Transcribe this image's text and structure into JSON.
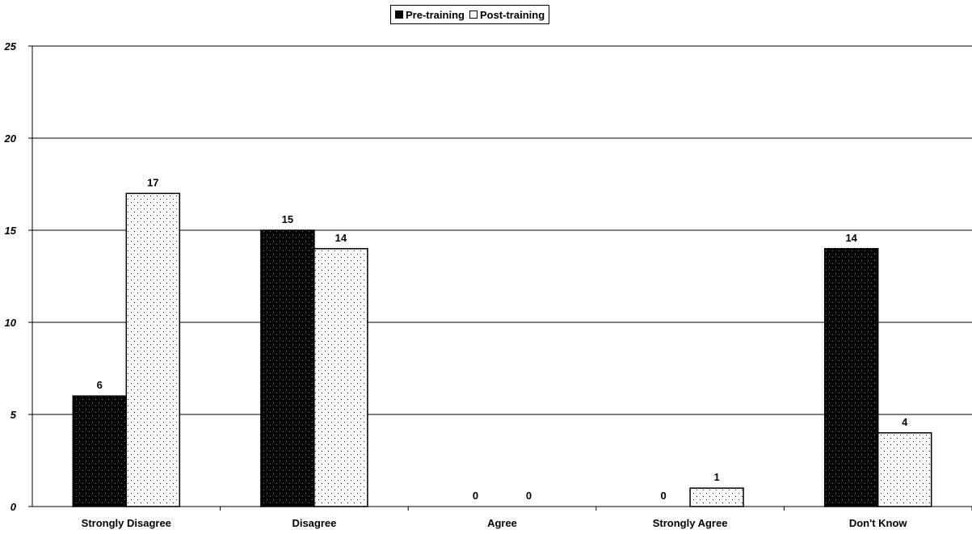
{
  "chart_data": {
    "type": "bar",
    "categories": [
      "Strongly Disagree",
      "Disagree",
      "Agree",
      "Strongly Agree",
      "Don't Know"
    ],
    "series": [
      {
        "name": "Pre-training",
        "values": [
          6,
          15,
          0,
          0,
          14
        ],
        "color": "#000000",
        "pattern": "dotted-dark"
      },
      {
        "name": "Post-training",
        "values": [
          17,
          14,
          0,
          1,
          4
        ],
        "color": "#ffffff",
        "pattern": "dotted-light"
      }
    ],
    "ylim": [
      0,
      25
    ],
    "yticks": [
      0,
      5,
      10,
      15,
      20,
      25
    ],
    "grid": true,
    "legend_position": "top-center",
    "data_labels": true
  }
}
